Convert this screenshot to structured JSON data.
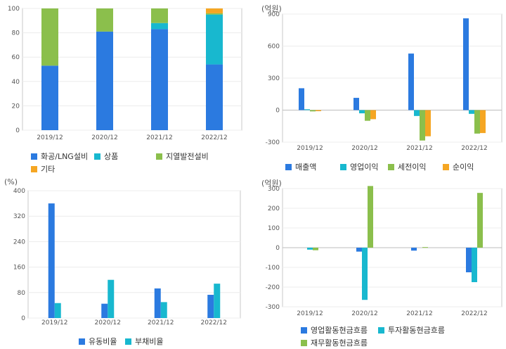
{
  "chart_data": [
    {
      "type": "bar",
      "stacked": true,
      "categories": [
        "2019/12",
        "2020/12",
        "2021/12",
        "2022/12"
      ],
      "ylim": [
        0,
        100
      ],
      "yticks": [
        "0",
        "20",
        "40",
        "60",
        "80",
        "100"
      ],
      "series": [
        {
          "name": "화공/LNG설비",
          "color": "#2b7ae0",
          "values": [
            53,
            81,
            83,
            54
          ]
        },
        {
          "name": "상품",
          "color": "#18b8cf",
          "values": [
            0,
            0,
            5,
            41
          ]
        },
        {
          "name": "지열발전설비",
          "color": "#8bbf4c",
          "values": [
            47,
            19,
            12,
            1
          ]
        },
        {
          "name": "기타",
          "color": "#f5a623",
          "values": [
            0,
            0,
            0,
            4
          ]
        }
      ]
    },
    {
      "type": "bar",
      "unit": "(억원)",
      "categories": [
        "2019/12",
        "2020/12",
        "2021/12",
        "2022/12"
      ],
      "ylim": [
        -300,
        900
      ],
      "yticks": [
        "900",
        "600",
        "300",
        "0",
        "-300"
      ],
      "series": [
        {
          "name": "매출액",
          "color": "#2b7ae0",
          "values": [
            205,
            115,
            530,
            860
          ]
        },
        {
          "name": "영업이익",
          "color": "#18b8cf",
          "values": [
            8,
            -30,
            -55,
            -35
          ]
        },
        {
          "name": "세전이익",
          "color": "#8bbf4c",
          "values": [
            -12,
            -100,
            -285,
            -220
          ]
        },
        {
          "name": "순이익",
          "color": "#f5a623",
          "values": [
            -10,
            -85,
            -245,
            -215
          ]
        }
      ]
    },
    {
      "type": "bar",
      "unit": "(%)",
      "categories": [
        "2019/12",
        "2020/12",
        "2021/12",
        "2022/12"
      ],
      "ylim": [
        0,
        400
      ],
      "yticks": [
        "400",
        "320",
        "240",
        "160",
        "80",
        "0"
      ],
      "series": [
        {
          "name": "유동비율",
          "color": "#2b7ae0",
          "values": [
            360,
            45,
            93,
            73
          ]
        },
        {
          "name": "부채비율",
          "color": "#18b8cf",
          "values": [
            47,
            120,
            50,
            108
          ]
        }
      ]
    },
    {
      "type": "bar",
      "unit": "(억원)",
      "categories": [
        "2019/12",
        "2020/12",
        "2021/12",
        "2022/12"
      ],
      "ylim": [
        -300,
        300
      ],
      "yticks": [
        "300",
        "200",
        "100",
        "0",
        "-100",
        "-200",
        "-300"
      ],
      "series": [
        {
          "name": "영업활동현금흐름",
          "color": "#2b7ae0",
          "values": [
            0,
            -20,
            -15,
            -125
          ]
        },
        {
          "name": "투자활동현금흐름",
          "color": "#18b8cf",
          "values": [
            -10,
            -265,
            0,
            -175
          ]
        },
        {
          "name": "재무활동현금흐름",
          "color": "#8bbf4c",
          "values": [
            -13,
            313,
            3,
            278
          ]
        }
      ]
    }
  ]
}
